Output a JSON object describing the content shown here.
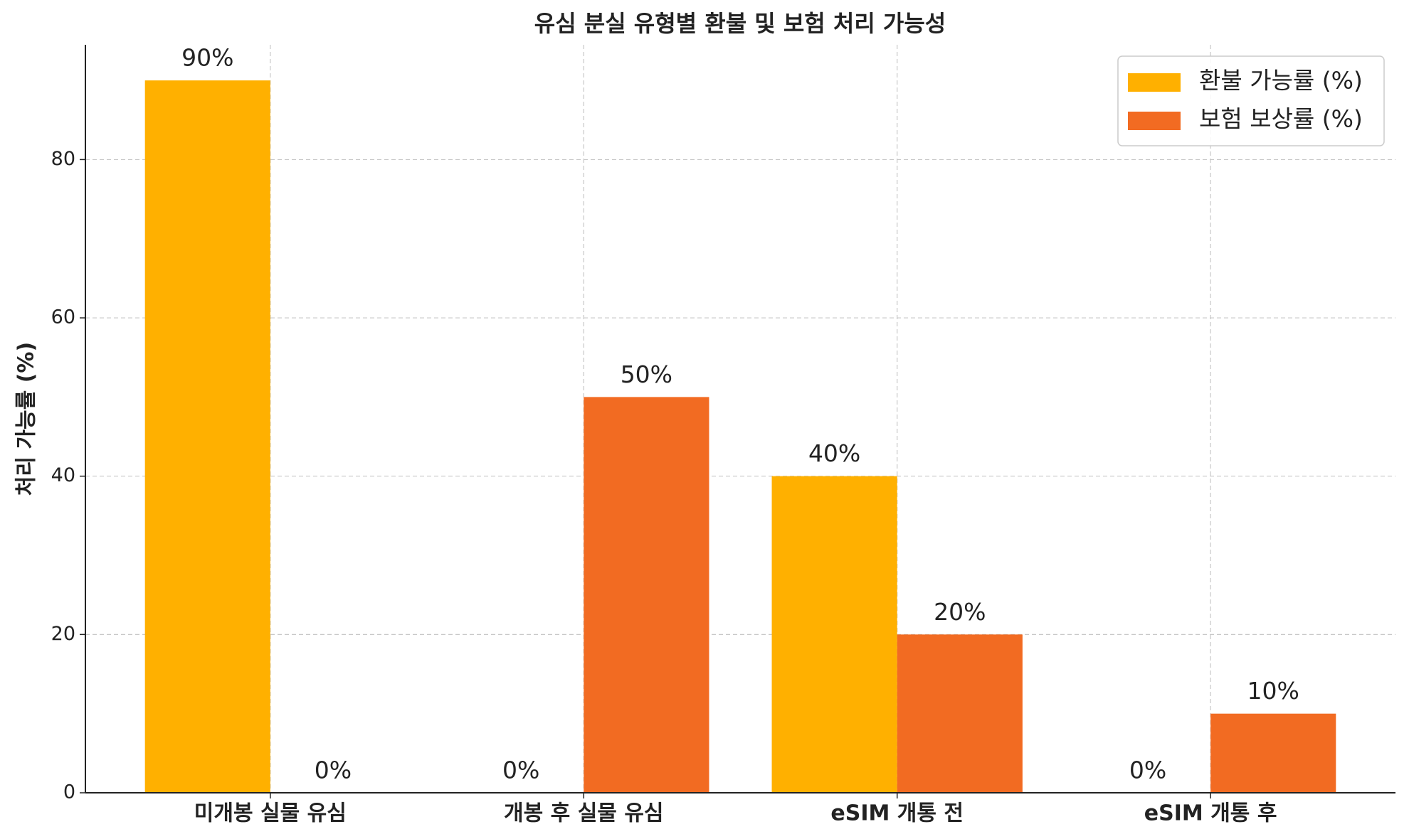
{
  "chart_data": {
    "type": "bar",
    "title": "유심 분실 유형별 환불 및 보험 처리 가능성",
    "y_label": "처리 가능률 (%)",
    "categories": [
      "미개봉 실물 유심",
      "개봉 후 실물 유심",
      "eSIM 개통 전",
      "eSIM 개통 후"
    ],
    "series": [
      {
        "name": "환불 가능률 (%)",
        "color": "#ffb000",
        "values": [
          90,
          0,
          40,
          0
        ],
        "value_labels": [
          "90%",
          "0%",
          "40%",
          "0%"
        ]
      },
      {
        "name": "보험 보상률 (%)",
        "color": "#f26b22",
        "values": [
          0,
          50,
          20,
          10
        ],
        "value_labels": [
          "0%",
          "50%",
          "20%",
          "10%"
        ]
      }
    ],
    "ylim": [
      0,
      94.5
    ],
    "yticks": [
      0,
      20,
      40,
      60,
      80
    ],
    "grid": true,
    "legend": "upper right"
  }
}
